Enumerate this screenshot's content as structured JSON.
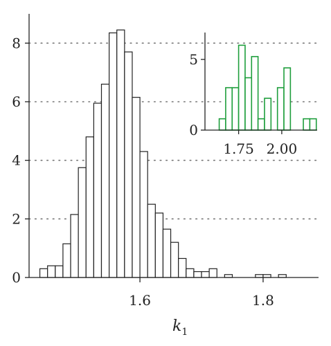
{
  "chart_data": [
    {
      "type": "bar",
      "title": "",
      "xlabel": "k",
      "xlabel_subscript": "1",
      "ylabel": "",
      "xlim": [
        1.42,
        1.89
      ],
      "ylim": [
        0,
        9
      ],
      "bin_start": 1.4375,
      "bin_width": 0.0125,
      "values": [
        0.3,
        0.4,
        0.4,
        1.15,
        2.15,
        3.75,
        4.8,
        5.95,
        6.6,
        8.35,
        8.45,
        7.7,
        6.15,
        4.3,
        2.5,
        2.2,
        1.65,
        1.2,
        0.65,
        0.3,
        0.2,
        0.2,
        0.3,
        0.0,
        0.1,
        0.0,
        0.0,
        0.0,
        0.1,
        0.1,
        0.0,
        0.1
      ],
      "xticks": [
        1.6,
        1.8
      ],
      "xtick_labels": [
        "1.6",
        "1.8"
      ],
      "yticks": [
        0,
        2,
        4,
        6,
        8
      ],
      "ytick_labels": [
        "0",
        "2",
        "4",
        "6",
        "8"
      ],
      "grid": "dotted horizontal",
      "bar_color": "#222222",
      "fill_color": "#ffffff"
    },
    {
      "type": "bar",
      "title": "",
      "xlabel": "",
      "ylabel": "",
      "xlim": [
        1.555,
        2.205
      ],
      "ylim": [
        0,
        6.9
      ],
      "bin_start": 1.6375,
      "bin_width": 0.0375,
      "values": [
        0.8,
        3.0,
        3.0,
        6.0,
        3.7,
        5.2,
        0.8,
        2.25,
        0.0,
        3.0,
        4.4,
        0.0,
        0.0,
        0.8,
        0.8
      ],
      "xticks": [
        1.75,
        2.0
      ],
      "xtick_labels": [
        "1.75",
        "2.00"
      ],
      "yticks": [
        0,
        5
      ],
      "ytick_labels": [
        "0",
        "5"
      ],
      "grid": "dotted horizontal",
      "bar_color": "#1e9e3c",
      "fill_color": "#ffffff"
    }
  ]
}
